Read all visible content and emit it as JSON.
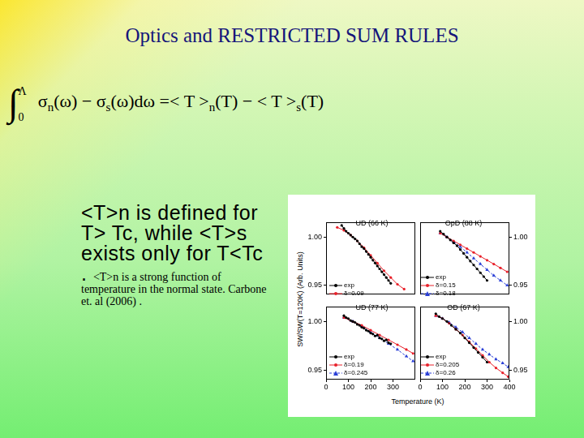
{
  "slide": {
    "title": "Optics and RESTRICTED SUM RULES",
    "formula": {
      "integral": {
        "symbol": "∫",
        "lower": "0",
        "upper": "Λ"
      },
      "parts": [
        {
          "text": "σ"
        },
        {
          "text": "n",
          "sub": true
        },
        {
          "text": "(ω) − σ"
        },
        {
          "text": "s",
          "sub": true
        },
        {
          "text": "(ω)dω =< T >"
        },
        {
          "text": "n",
          "sub": true
        },
        {
          "text": "(T) − < T >"
        },
        {
          "text": "s",
          "sub": true
        },
        {
          "text": "(T)"
        }
      ]
    },
    "text_large": "<T>n is defined for T> Tc, while <T>s exists only for T<Tc . ",
    "text_small": "<T>n is a strong function of temperature in the normal state. Carbone et. al (2006) ."
  },
  "figure": {
    "xlabel": "Temperature (K)",
    "ylabel": "SW/SW(T=120K) (Arb. Units)"
  },
  "chart_data": [
    {
      "type": "line",
      "title": "UD (66 K)",
      "xlim": [
        0,
        400
      ],
      "xticks": [
        0,
        100,
        200,
        300
      ],
      "ylim": [
        0.94,
        1.015
      ],
      "yticks": [
        0.95,
        {
          "value": 1,
          "label": "1.00"
        }
      ],
      "tick_labels": "y",
      "legend": "lower left",
      "grid": false,
      "series": [
        {
          "name": "exp",
          "color": "#000000",
          "marker": "circle",
          "line_style": "solid",
          "x": [
            70,
            80,
            90,
            100,
            110,
            120,
            130,
            140,
            150,
            160,
            170,
            180,
            190,
            200,
            210,
            220,
            230,
            240,
            250,
            260,
            270,
            280,
            290
          ],
          "values": [
            1.012,
            1.009,
            1.006,
            1.004,
            1.002,
            1.0,
            0.998,
            0.996,
            0.993,
            0.99,
            0.988,
            0.985,
            0.982,
            0.979,
            0.976,
            0.973,
            0.97,
            0.967,
            0.964,
            0.961,
            0.958,
            0.955,
            0.952
          ]
        },
        {
          "name": "δ=0.09",
          "color": "#e8202a",
          "marker": "circle",
          "line_style": "solid",
          "x": [
            50,
            80,
            110,
            140,
            170,
            200,
            230,
            260,
            290,
            320,
            350
          ],
          "values": [
            1.01,
            1.007,
            1.002,
            0.996,
            0.989,
            0.981,
            0.973,
            0.965,
            0.958,
            0.951,
            0.946
          ]
        }
      ]
    },
    {
      "type": "line",
      "title": "OpD (88 K)",
      "xlim": [
        0,
        400
      ],
      "xticks": [
        0,
        100,
        200,
        300,
        400
      ],
      "ylim": [
        0.94,
        1.015
      ],
      "yticks": [
        0.95,
        {
          "value": 1,
          "label": "1.00"
        }
      ],
      "tick_labels": "y",
      "legend": "lower left",
      "grid": false,
      "series": [
        {
          "name": "exp",
          "color": "#000000",
          "marker": "circle",
          "line_style": "solid",
          "x": [
            90,
            105,
            120,
            135,
            150,
            165,
            180,
            195,
            210,
            225,
            240,
            255,
            270,
            285,
            300
          ],
          "values": [
            1.006,
            1.003,
            1.0,
            0.997,
            0.994,
            0.991,
            0.987,
            0.983,
            0.979,
            0.975,
            0.971,
            0.967,
            0.963,
            0.959,
            0.955
          ]
        },
        {
          "name": "δ=0.15",
          "color": "#e8202a",
          "marker": "circle",
          "line_style": "solid",
          "x": [
            90,
            120,
            150,
            180,
            210,
            240,
            270,
            300,
            330,
            360,
            390
          ],
          "values": [
            1.004,
            1.0,
            0.996,
            0.992,
            0.988,
            0.984,
            0.98,
            0.976,
            0.972,
            0.968,
            0.964
          ]
        },
        {
          "name": "δ=0.18",
          "color": "#2a3fd6",
          "marker": "triangle",
          "line_style": "dashed",
          "x": [
            90,
            120,
            150,
            180,
            210,
            240,
            270,
            300,
            330,
            360,
            390
          ],
          "values": [
            1.004,
            1.0,
            0.995,
            0.99,
            0.984,
            0.978,
            0.972,
            0.966,
            0.96,
            0.955,
            0.95
          ]
        }
      ]
    },
    {
      "type": "line",
      "title": "UD (77 K)",
      "xlim": [
        0,
        400
      ],
      "xticks": [
        0,
        100,
        200,
        300
      ],
      "ylim": [
        0.94,
        1.015
      ],
      "yticks": [
        0.95,
        {
          "value": 1,
          "label": "1.00"
        }
      ],
      "legend": "lower left",
      "grid": false,
      "series": [
        {
          "name": "exp",
          "color": "#000000",
          "marker": "circle",
          "line_style": "solid",
          "x": [
            80,
            90,
            100,
            110,
            120,
            130,
            140,
            150,
            160,
            170,
            180,
            190,
            200,
            210,
            220,
            230,
            240,
            250,
            260,
            270,
            280,
            290
          ],
          "values": [
            1.006,
            1.004,
            1.003,
            1.001,
            1.0,
            0.999,
            0.997,
            0.996,
            0.994,
            0.993,
            0.991,
            0.99,
            0.988,
            0.987,
            0.985,
            0.986,
            0.983,
            0.982,
            0.98,
            0.981,
            0.978,
            0.977
          ]
        },
        {
          "name": "δ=0.19",
          "color": "#e8202a",
          "marker": "circle",
          "line_style": "solid",
          "x": [
            80,
            120,
            160,
            200,
            240,
            280,
            320,
            360,
            390
          ],
          "values": [
            1.004,
            1.0,
            0.996,
            0.991,
            0.986,
            0.981,
            0.976,
            0.971,
            0.967
          ]
        },
        {
          "name": "δ=0.245",
          "color": "#2a3fd6",
          "marker": "triangle",
          "line_style": "dashed",
          "x": [
            80,
            120,
            160,
            200,
            240,
            280,
            320,
            360,
            390
          ],
          "values": [
            1.004,
            1.0,
            0.995,
            0.989,
            0.983,
            0.977,
            0.971,
            0.964,
            0.959
          ]
        }
      ]
    },
    {
      "type": "line",
      "title": "OD (67 K)",
      "xlim": [
        0,
        400
      ],
      "xticks": [
        0,
        100,
        200,
        300,
        400
      ],
      "ylim": [
        0.94,
        1.015
      ],
      "yticks": [
        0.95,
        {
          "value": 1,
          "label": "1.00"
        }
      ],
      "legend": "lower left",
      "grid": false,
      "series": [
        {
          "name": "exp",
          "color": "#000000",
          "marker": "circle",
          "line_style": "solid",
          "x": [
            70,
            85,
            100,
            120,
            140,
            160,
            180,
            200,
            220,
            240,
            260,
            280,
            300
          ],
          "values": [
            1.008,
            1.005,
            1.003,
            1.0,
            0.996,
            0.992,
            0.988,
            0.983,
            0.978,
            0.973,
            0.968,
            0.963,
            0.958
          ]
        },
        {
          "name": "δ=0.205",
          "color": "#e8202a",
          "marker": "circle",
          "line_style": "solid",
          "x": [
            70,
            100,
            130,
            160,
            190,
            220,
            250,
            280,
            310,
            340,
            370,
            395
          ],
          "values": [
            1.006,
            1.003,
            0.998,
            0.992,
            0.986,
            0.979,
            0.972,
            0.965,
            0.958,
            0.952,
            0.947,
            0.943
          ]
        },
        {
          "name": "δ=0.26",
          "color": "#2a3fd6",
          "marker": "triangle",
          "line_style": "dashed",
          "x": [
            70,
            100,
            130,
            160,
            190,
            220,
            250,
            280,
            310,
            340,
            370,
            395
          ],
          "values": [
            1.006,
            1.003,
            0.999,
            0.994,
            0.989,
            0.983,
            0.977,
            0.971,
            0.966,
            0.961,
            0.957,
            0.953
          ]
        }
      ]
    }
  ]
}
